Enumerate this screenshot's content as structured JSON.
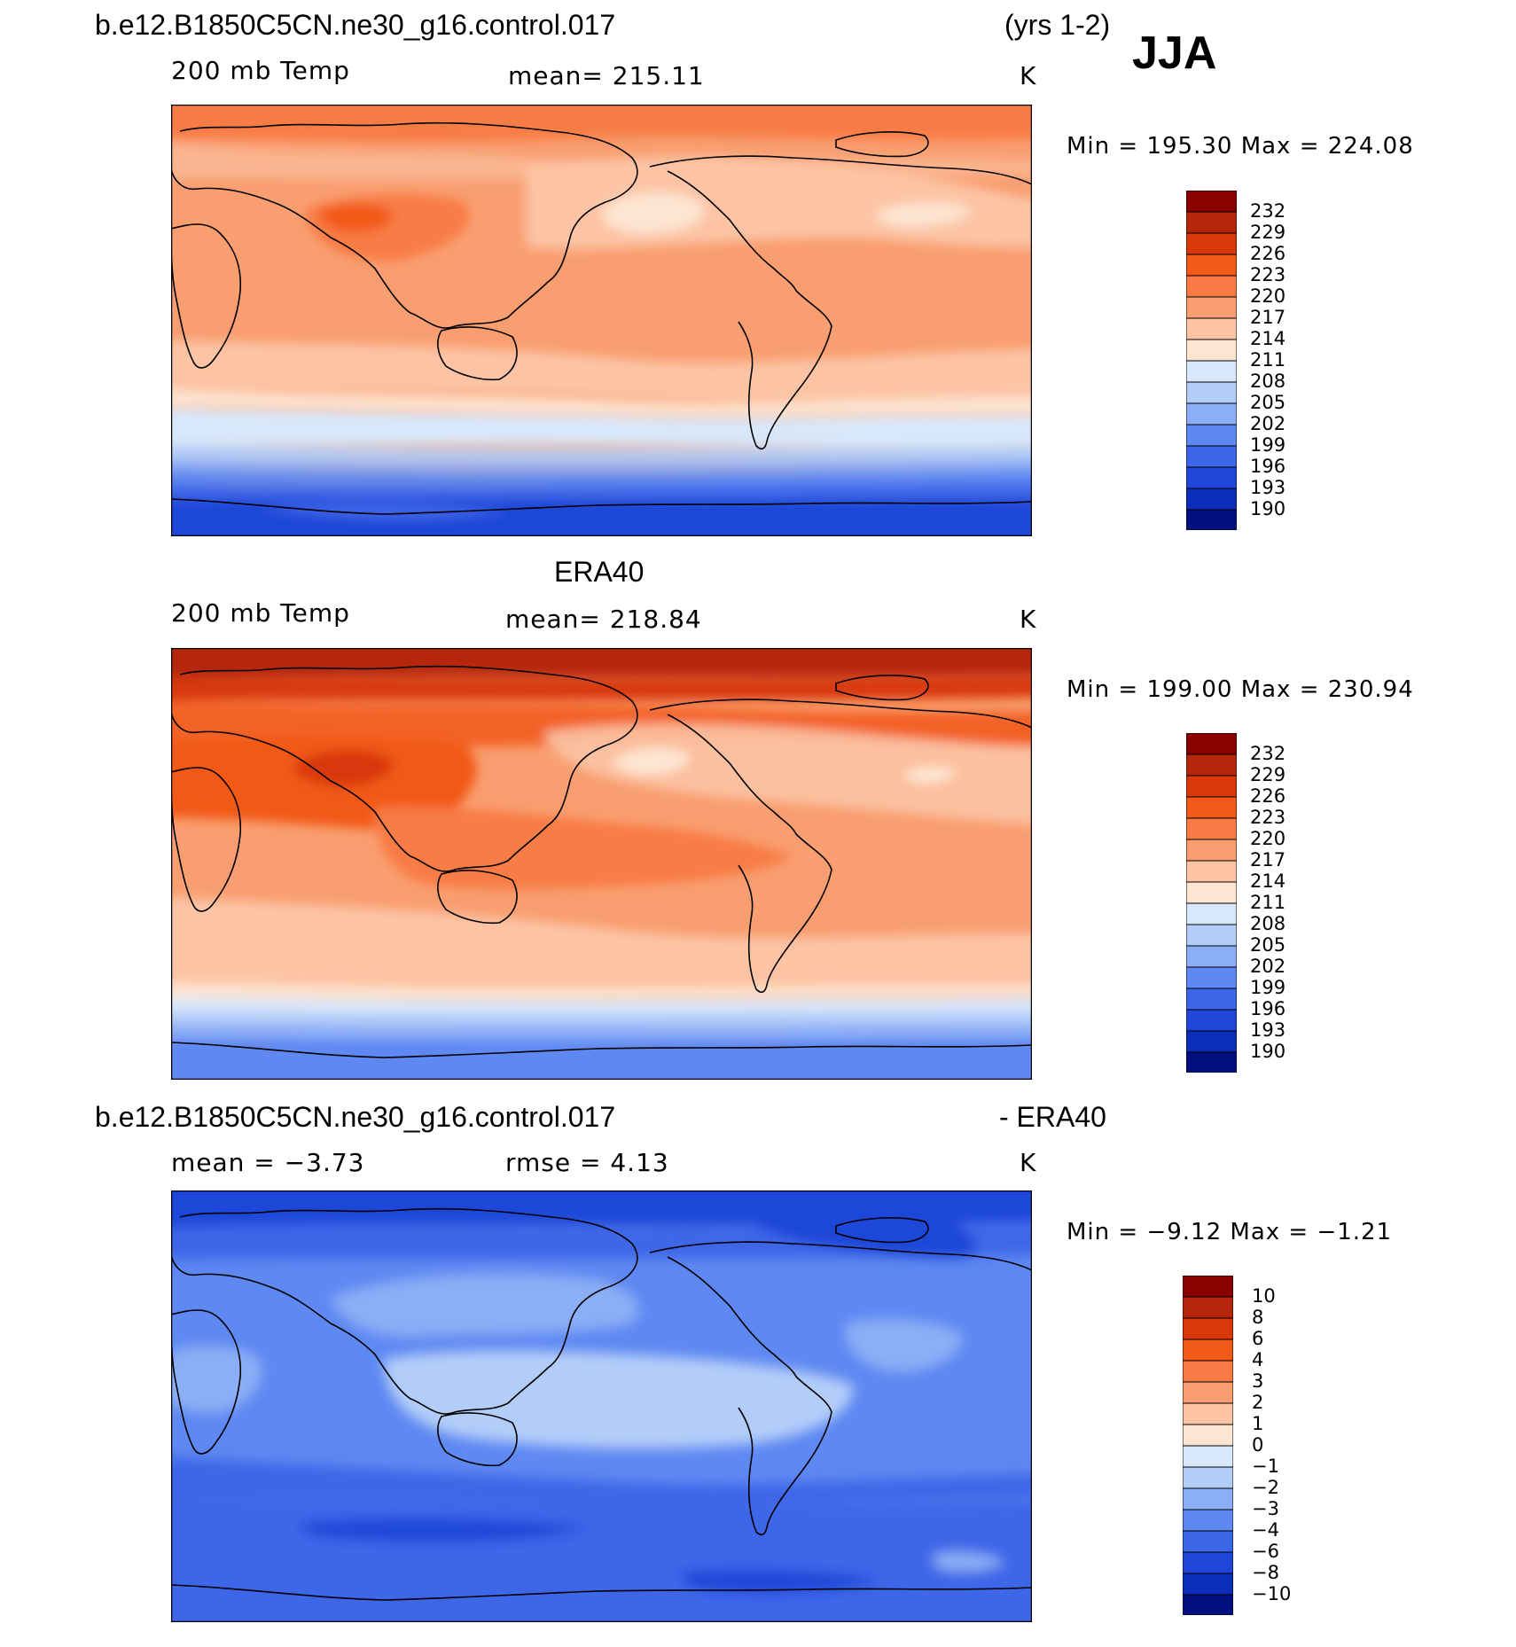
{
  "header": {
    "case_name": "b.e12.B1850C5CN.ne30_g16.control.017",
    "years": "(yrs 1-2)",
    "season": "JJA"
  },
  "panels": [
    {
      "title": "",
      "variable": "200 mb Temp",
      "stat": "mean=  215.11",
      "unit": "K",
      "minmax": "Min  =  195.30  Max  =  224.08",
      "colorbar_labels": [
        "232",
        "229",
        "226",
        "223",
        "220",
        "217",
        "214",
        "211",
        "208",
        "205",
        "202",
        "199",
        "196",
        "193",
        "190"
      ]
    },
    {
      "title": "ERA40",
      "variable": "200 mb Temp",
      "stat": "mean=  218.84",
      "unit": "K",
      "minmax": "Min  =  199.00  Max  =  230.94",
      "colorbar_labels": [
        "232",
        "229",
        "226",
        "223",
        "220",
        "217",
        "214",
        "211",
        "208",
        "205",
        "202",
        "199",
        "196",
        "193",
        "190"
      ]
    },
    {
      "title_left": "b.e12.B1850C5CN.ne30_g16.control.017",
      "title_right": "- ERA40",
      "variable": "mean  =    −3.73",
      "stat": "rmse  =     4.13",
      "unit": "K",
      "minmax": "Min  =    −9.12  Max  =    −1.21",
      "colorbar_labels": [
        "10",
        "8",
        "6",
        "4",
        "3",
        "2",
        "1",
        "0",
        "−1",
        "−2",
        "−3",
        "−4",
        "−6",
        "−8",
        "−10"
      ]
    }
  ],
  "colors": {
    "palette_top_to_bottom": [
      "#8b0000",
      "#b5270c",
      "#d8380a",
      "#f25818",
      "#f87b45",
      "#f99e70",
      "#fcc4a5",
      "#fde5d2",
      "#d8e8fb",
      "#b3cdf9",
      "#8caef6",
      "#5e88f2",
      "#3c66e8",
      "#1f46d8",
      "#0b2db8",
      "#00107f"
    ]
  },
  "map_data": {
    "projection": "cylindrical equidistant, Pacific-centred",
    "fields": [
      "model 200 mb temperature",
      "ERA40 200 mb temperature",
      "model minus ERA40 difference"
    ]
  }
}
